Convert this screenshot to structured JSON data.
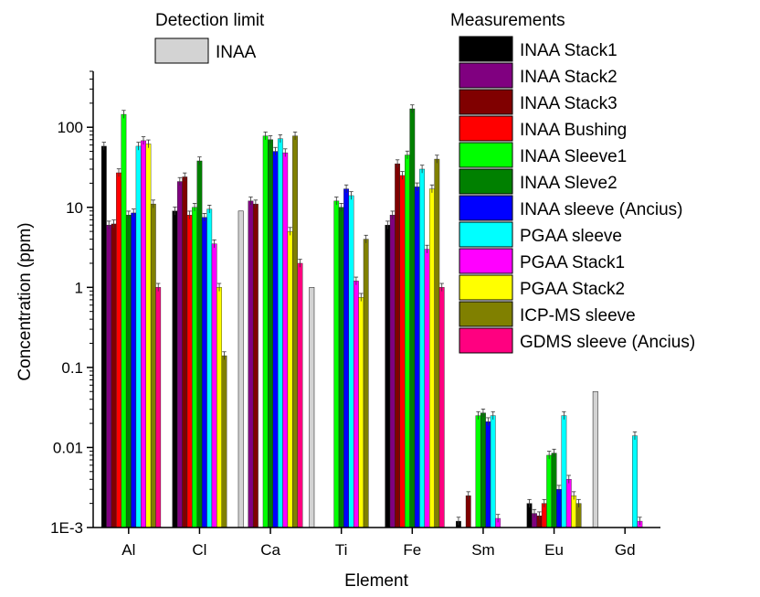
{
  "chart_data": {
    "type": "bar",
    "xlabel": "Element",
    "ylabel": "Concentration (ppm)",
    "yscale": "log",
    "ylim": [
      0.001,
      500
    ],
    "yticks": [
      "1E-3",
      "0.01",
      "0.1",
      "1",
      "10",
      "100"
    ],
    "categories": [
      "Al",
      "Cl",
      "Ca",
      "Ti",
      "Fe",
      "Sm",
      "Eu",
      "Gd"
    ],
    "detection_limit": {
      "heading": "Detection limit",
      "name": "INAA",
      "color": "#d3d3d3",
      "values": [
        null,
        null,
        9,
        1,
        null,
        null,
        null,
        0.05
      ]
    },
    "legend_heading": "Measurements",
    "legend_position": "right",
    "series": [
      {
        "name": "INAA Stack1",
        "color": "#000000",
        "values": [
          58,
          9,
          null,
          null,
          6,
          0.0012,
          0.002,
          null
        ]
      },
      {
        "name": "INAA Stack2",
        "color": "#800080",
        "values": [
          6,
          21,
          12,
          null,
          8,
          null,
          0.0015,
          null
        ]
      },
      {
        "name": "INAA Stack3",
        "color": "#800000",
        "values": [
          6.2,
          24,
          11,
          null,
          35,
          0.0025,
          0.0014,
          null
        ]
      },
      {
        "name": "INAA Bushing",
        "color": "#ff0000",
        "values": [
          27,
          8,
          null,
          null,
          25,
          null,
          0.002,
          null
        ]
      },
      {
        "name": "INAA Sleeve1",
        "color": "#00ff00",
        "values": [
          145,
          10,
          78,
          12,
          45,
          0.025,
          0.008,
          null
        ]
      },
      {
        "name": "INAA Sleve2",
        "color": "#008000",
        "values": [
          8,
          38,
          70,
          10,
          170,
          0.027,
          0.0085,
          null
        ]
      },
      {
        "name": "INAA sleeve (Ancius)",
        "color": "#0000ff",
        "values": [
          8.5,
          7.5,
          50,
          17,
          18,
          0.021,
          0.003,
          null
        ]
      },
      {
        "name": "PGAA sleeve",
        "color": "#00ffff",
        "values": [
          58,
          9.5,
          72,
          14,
          30,
          0.025,
          0.025,
          0.014
        ]
      },
      {
        "name": "PGAA Stack1",
        "color": "#ff00ff",
        "values": [
          68,
          3.5,
          48,
          1.2,
          3,
          0.0013,
          0.004,
          0.0012
        ]
      },
      {
        "name": "PGAA Stack2",
        "color": "#ffff00",
        "values": [
          62,
          1,
          5,
          0.75,
          17,
          null,
          0.0025,
          null
        ]
      },
      {
        "name": "ICP-MS sleeve",
        "color": "#808000",
        "values": [
          11,
          0.14,
          78,
          4,
          40,
          null,
          0.002,
          null
        ]
      },
      {
        "name": "GDMS sleeve (Ancius)",
        "color": "#ff0080",
        "values": [
          1,
          null,
          2,
          null,
          1,
          null,
          null,
          null
        ]
      }
    ]
  }
}
